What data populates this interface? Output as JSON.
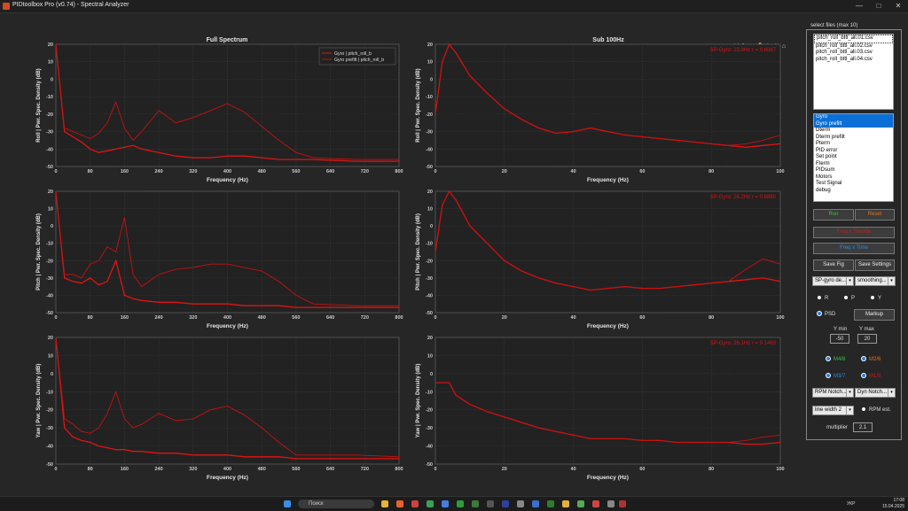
{
  "window": {
    "title": "PIDtoolbox Pro (v0.74) - Spectral Analyzer",
    "min": "—",
    "max": "□",
    "close": "✕"
  },
  "colors": {
    "bg": "#262626",
    "axes": "#222222",
    "grid": "#3e3e3e",
    "trace": "#e01414",
    "trace2": "#c81010",
    "annot": "#dd1111"
  },
  "plots": {
    "full_title": "Full Spectrum",
    "sub_title": "Sub 100Hz",
    "xlabel": "Frequency (Hz)",
    "ylabels": [
      "Roll  |  Pwr. Spec. Density (dB)",
      "Pitch  |  Pwr. Spec. Density (dB)",
      "Yaw  |  Pwr. Spec. Density (dB)"
    ],
    "legend": [
      "Gyro | pitch_roll_b",
      "Gyro prefilt | pitch_roll_b"
    ],
    "annotations": [
      "SP-Gyro: 23.8Hz r = 0.6887",
      "SP-Gyro: 26.2Hz r = 0.6880",
      "SP-Gyro: 26.1Hz r = 0.1463"
    ]
  },
  "chart_data": [
    {
      "type": "line",
      "panel": "roll-full",
      "x": [
        0,
        20,
        40,
        60,
        80,
        100,
        120,
        140,
        160,
        180,
        200,
        240,
        280,
        320,
        360,
        400,
        440,
        480,
        520,
        560,
        600,
        700,
        800
      ],
      "series": [
        {
          "name": "Gyro | pitch_roll_b",
          "values": [
            20,
            -30,
            -33,
            -36,
            -40,
            -42,
            -41,
            -40,
            -39,
            -38,
            -40,
            -42,
            -44,
            -45,
            -45,
            -44,
            -44,
            -45,
            -46,
            -46,
            -46,
            -47,
            -47
          ]
        },
        {
          "name": "Gyro prefilt | pitch_roll_b",
          "values": [
            20,
            -28,
            -30,
            -32,
            -34,
            -31,
            -25,
            -13,
            -28,
            -35,
            -30,
            -18,
            -25,
            -22,
            -18,
            -14,
            -19,
            -27,
            -35,
            -42,
            -45,
            -46,
            -46
          ]
        }
      ],
      "xlim": [
        0,
        800
      ],
      "ylim": [
        -50,
        20
      ],
      "xticks": [
        0,
        80,
        160,
        240,
        320,
        400,
        480,
        560,
        640,
        720,
        800
      ],
      "yticks": [
        20,
        10,
        0,
        -10,
        -20,
        -30,
        -40,
        -50
      ]
    },
    {
      "type": "line",
      "panel": "pitch-full",
      "x": [
        0,
        20,
        40,
        60,
        80,
        100,
        120,
        140,
        160,
        180,
        200,
        240,
        280,
        320,
        360,
        400,
        440,
        480,
        520,
        560,
        600,
        700,
        800
      ],
      "series": [
        {
          "name": "Gyro | pitch_roll_b",
          "values": [
            20,
            -30,
            -32,
            -33,
            -30,
            -34,
            -32,
            -20,
            -40,
            -42,
            -43,
            -44,
            -44,
            -45,
            -45,
            -45,
            -46,
            -46,
            -46,
            -47,
            -47,
            -47,
            -47
          ]
        },
        {
          "name": "Gyro prefilt | pitch_roll_b",
          "values": [
            20,
            -28,
            -28,
            -30,
            -22,
            -20,
            -12,
            -15,
            5,
            -28,
            -35,
            -28,
            -25,
            -24,
            -22,
            -22,
            -24,
            -26,
            -32,
            -40,
            -45,
            -46,
            -46
          ]
        }
      ],
      "xlim": [
        0,
        800
      ],
      "ylim": [
        -50,
        20
      ],
      "xticks": [
        0,
        80,
        160,
        240,
        320,
        400,
        480,
        560,
        640,
        720,
        800
      ],
      "yticks": [
        20,
        10,
        0,
        -10,
        -20,
        -30,
        -40,
        -50
      ]
    },
    {
      "type": "line",
      "panel": "yaw-full",
      "x": [
        0,
        20,
        40,
        60,
        80,
        100,
        120,
        140,
        160,
        180,
        200,
        240,
        280,
        320,
        360,
        400,
        440,
        480,
        520,
        560,
        600,
        700,
        800
      ],
      "series": [
        {
          "name": "Gyro | pitch_roll_b",
          "values": [
            20,
            -30,
            -35,
            -37,
            -38,
            -40,
            -41,
            -42,
            -42,
            -43,
            -43,
            -44,
            -44,
            -45,
            -45,
            -45,
            -46,
            -46,
            -46,
            -47,
            -47,
            -47,
            -47
          ]
        },
        {
          "name": "Gyro prefilt | pitch_roll_b",
          "values": [
            20,
            -25,
            -28,
            -32,
            -33,
            -30,
            -22,
            -10,
            -25,
            -30,
            -28,
            -22,
            -26,
            -25,
            -20,
            -18,
            -23,
            -30,
            -38,
            -45,
            -45,
            -45,
            -46
          ]
        }
      ],
      "xlim": [
        0,
        800
      ],
      "ylim": [
        -50,
        20
      ],
      "xticks": [
        0,
        80,
        160,
        240,
        320,
        400,
        480,
        560,
        640,
        720,
        800
      ],
      "yticks": [
        20,
        10,
        0,
        -10,
        -20,
        -30,
        -40,
        -50
      ]
    },
    {
      "type": "line",
      "panel": "roll-sub",
      "x": [
        0,
        2,
        4,
        6,
        10,
        15,
        20,
        25,
        30,
        35,
        40,
        45,
        50,
        55,
        60,
        65,
        70,
        75,
        80,
        85,
        90,
        95,
        100
      ],
      "series": [
        {
          "name": "Gyro | pitch_roll_b",
          "values": [
            -20,
            10,
            20,
            15,
            2,
            -8,
            -17,
            -23,
            -28,
            -31,
            -30,
            -28,
            -30,
            -32,
            -33,
            -34,
            -35,
            -36,
            -37,
            -38,
            -39,
            -38,
            -37
          ]
        },
        {
          "name": "Gyro prefilt | pitch_roll_b",
          "values": [
            -20,
            10,
            20,
            15,
            2,
            -8,
            -17,
            -23,
            -28,
            -31,
            -30,
            -28,
            -30,
            -32,
            -33,
            -34,
            -35,
            -36,
            -37,
            -38,
            -37,
            -35,
            -32
          ]
        }
      ],
      "xlim": [
        0,
        100
      ],
      "ylim": [
        -50,
        20
      ],
      "xticks": [
        0,
        20,
        40,
        60,
        80,
        100
      ],
      "yticks": [
        20,
        10,
        0,
        -10,
        -20,
        -30,
        -40,
        -50
      ]
    },
    {
      "type": "line",
      "panel": "pitch-sub",
      "x": [
        0,
        2,
        4,
        6,
        10,
        15,
        20,
        25,
        30,
        35,
        40,
        45,
        50,
        55,
        60,
        65,
        70,
        75,
        80,
        85,
        90,
        95,
        100
      ],
      "series": [
        {
          "name": "Gyro | pitch_roll_b",
          "values": [
            -15,
            12,
            20,
            15,
            0,
            -10,
            -20,
            -26,
            -30,
            -33,
            -35,
            -37,
            -36,
            -35,
            -36,
            -36,
            -35,
            -34,
            -33,
            -32,
            -31,
            -30,
            -32
          ]
        },
        {
          "name": "Gyro prefilt | pitch_roll_b",
          "values": [
            -15,
            12,
            20,
            15,
            0,
            -10,
            -20,
            -26,
            -30,
            -33,
            -35,
            -37,
            -36,
            -35,
            -36,
            -36,
            -35,
            -34,
            -33,
            -32,
            -25,
            -19,
            -22
          ]
        }
      ],
      "xlim": [
        0,
        100
      ],
      "ylim": [
        -50,
        20
      ],
      "xticks": [
        0,
        20,
        40,
        60,
        80,
        100
      ],
      "yticks": [
        20,
        10,
        0,
        -10,
        -20,
        -30,
        -40,
        -50
      ]
    },
    {
      "type": "line",
      "panel": "yaw-sub",
      "x": [
        0,
        2,
        4,
        6,
        10,
        15,
        20,
        25,
        30,
        35,
        40,
        45,
        50,
        55,
        60,
        65,
        70,
        75,
        80,
        85,
        90,
        95,
        100
      ],
      "series": [
        {
          "name": "Gyro | pitch_roll_b",
          "values": [
            -5,
            -5,
            -5,
            -12,
            -17,
            -21,
            -24,
            -27,
            -30,
            -32,
            -34,
            -36,
            -36,
            -36,
            -37,
            -37,
            -38,
            -38,
            -38,
            -38,
            -39,
            -39,
            -38
          ]
        },
        {
          "name": "Gyro prefilt | pitch_roll_b",
          "values": [
            -5,
            -5,
            -5,
            -12,
            -17,
            -21,
            -24,
            -27,
            -30,
            -32,
            -34,
            -36,
            -36,
            -36,
            -37,
            -37,
            -38,
            -38,
            -38,
            -38,
            -37,
            -35,
            -34
          ]
        }
      ],
      "xlim": [
        0,
        100
      ],
      "ylim": [
        -50,
        20
      ],
      "xticks": [
        0,
        20,
        40,
        60,
        80,
        100
      ],
      "yticks": [
        20,
        10,
        0,
        -10,
        -20,
        -30,
        -40,
        -50
      ]
    }
  ],
  "sidebar": {
    "files_title": "select files (max 10)",
    "files": [
      "pitch_roll_bttl_all.01.csv",
      "pitch_roll_bttl_all.02.csv",
      "pitch_roll_bttl_all.03.csv",
      "pitch_roll_bttl_all.04.csv"
    ],
    "signals": [
      "Gyro",
      "Gyro prefilt",
      "Dterm",
      "Dterm prefilt",
      "Pterm",
      "PID error",
      "Set point",
      "Fterm",
      "PIDsum",
      "Motors",
      "Test Signal",
      "debug"
    ],
    "signals_selected": [
      0,
      1
    ],
    "run": "Run",
    "reset": "Reset",
    "freq_throttle": "Freq x Throttle",
    "freq_time": "Freq x Time",
    "save_fig": "Save Fig",
    "save_settings": "Save Settings",
    "dd1": "SP-gyro de...",
    "dd2": "smoothing...",
    "r": "R",
    "p": "P",
    "y": "Y",
    "psd": "PSD",
    "markup": "Markup",
    "ymin_label": "Y min",
    "ymax_label": "Y max",
    "ymin": "-50",
    "ymax": "20",
    "m48": "M4/8",
    "m26": "M2/6",
    "m37": "M3/7",
    "m15": "M1/5",
    "rpm_notch": "RPM Notch...",
    "dyn_notch": "Dyn Notch...",
    "line_width": "line width 2",
    "rpm_est": "RPM est.",
    "multiplier_label": "multiplier",
    "multiplier": "2.1"
  },
  "taskbar": {
    "search": "Поиск",
    "lang": "УКР",
    "time": "17:08",
    "date": "15.04.2025"
  }
}
